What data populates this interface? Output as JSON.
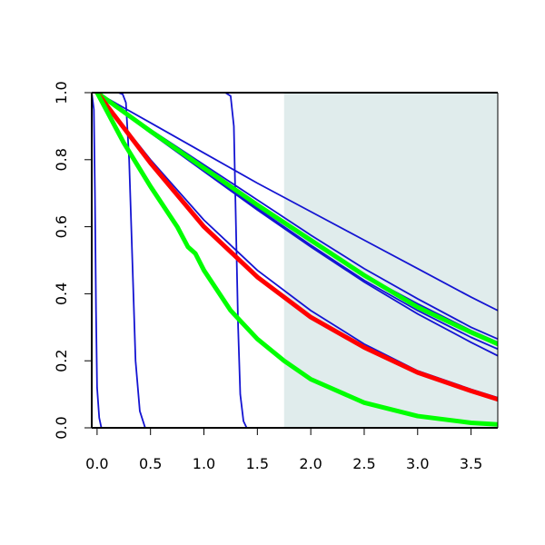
{
  "chart_data": {
    "type": "line",
    "title": "",
    "xlabel": "",
    "ylabel": "",
    "xlim": [
      -0.05,
      3.75
    ],
    "ylim": [
      0.0,
      1.0
    ],
    "x_ticks": [
      "0.0",
      "0.5",
      "1.0",
      "1.5",
      "2.0",
      "2.5",
      "3.0",
      "3.5"
    ],
    "x_tick_values": [
      0.0,
      0.5,
      1.0,
      1.5,
      2.0,
      2.5,
      3.0,
      3.5
    ],
    "y_ticks": [
      "0.0",
      "0.2",
      "0.4",
      "0.6",
      "0.8",
      "1.0"
    ],
    "y_tick_values": [
      0.0,
      0.2,
      0.4,
      0.6,
      0.8,
      1.0
    ],
    "grid": false,
    "legend": "none",
    "shaded_region": {
      "x_from": 1.75,
      "x_to": 3.75,
      "color": "#e0ecec"
    },
    "series": [
      {
        "color": "#1414d2",
        "width": "thin",
        "x": [
          -0.05,
          -0.03,
          -0.02,
          -0.01,
          0.0,
          0.02,
          0.04,
          3.75
        ],
        "y": [
          1.0,
          0.95,
          0.7,
          0.35,
          0.12,
          0.03,
          0.0,
          0.0
        ]
      },
      {
        "color": "#1414d2",
        "width": "thin",
        "x": [
          0.2,
          0.24,
          0.27,
          0.3,
          0.33,
          0.36,
          0.4,
          0.45,
          3.75
        ],
        "y": [
          1.0,
          0.995,
          0.97,
          0.8,
          0.5,
          0.2,
          0.05,
          0.0,
          0.0
        ]
      },
      {
        "color": "#1414d2",
        "width": "thin",
        "x": [
          0.0,
          1.2,
          1.25,
          1.28,
          1.3,
          1.32,
          1.34,
          1.37,
          1.4,
          3.75
        ],
        "y": [
          1.0,
          1.0,
          0.99,
          0.9,
          0.6,
          0.3,
          0.1,
          0.02,
          0.0,
          0.0
        ]
      },
      {
        "color": "#1414d2",
        "width": "thin",
        "x": [
          0.0,
          0.5,
          1.0,
          1.5,
          2.0,
          2.5,
          3.0,
          3.5,
          3.75
        ],
        "y": [
          1.0,
          0.8,
          0.62,
          0.47,
          0.35,
          0.25,
          0.17,
          0.115,
          0.09
        ]
      },
      {
        "color": "#1414d2",
        "width": "thin",
        "x": [
          0.0,
          0.5,
          1.0,
          1.5,
          2.0,
          2.5,
          3.0,
          3.5,
          3.75
        ],
        "y": [
          1.0,
          0.88,
          0.77,
          0.66,
          0.555,
          0.455,
          0.37,
          0.29,
          0.255
        ]
      },
      {
        "color": "#1414d2",
        "width": "thin",
        "x": [
          0.0,
          0.5,
          1.0,
          1.5,
          2.0,
          2.5,
          3.0,
          3.5,
          3.75
        ],
        "y": [
          1.0,
          0.88,
          0.77,
          0.655,
          0.545,
          0.44,
          0.35,
          0.27,
          0.235
        ]
      },
      {
        "color": "#1414d2",
        "width": "thin",
        "x": [
          0.0,
          0.5,
          1.0,
          1.5,
          2.0,
          2.5,
          3.0,
          3.5,
          3.75
        ],
        "y": [
          1.0,
          0.88,
          0.765,
          0.65,
          0.54,
          0.435,
          0.34,
          0.255,
          0.215
        ]
      },
      {
        "color": "#1414d2",
        "width": "thin",
        "x": [
          0.0,
          0.5,
          1.0,
          1.5,
          2.0,
          2.5,
          3.0,
          3.5,
          3.75
        ],
        "y": [
          1.0,
          0.91,
          0.82,
          0.73,
          0.645,
          0.56,
          0.475,
          0.39,
          0.35
        ]
      },
      {
        "color": "#1414d2",
        "width": "thin",
        "x": [
          0.0,
          0.5,
          1.0,
          1.5,
          2.0,
          2.5,
          3.0,
          3.5,
          3.75
        ],
        "y": [
          1.0,
          0.89,
          0.785,
          0.68,
          0.575,
          0.475,
          0.385,
          0.3,
          0.265
        ]
      },
      {
        "color": "#00ff00",
        "width": "thick",
        "x": [
          0.0,
          0.5,
          1.0,
          1.5,
          2.0,
          2.5,
          3.0,
          3.5,
          3.75
        ],
        "y": [
          1.0,
          0.885,
          0.775,
          0.665,
          0.56,
          0.455,
          0.36,
          0.285,
          0.25
        ]
      },
      {
        "color": "#ff0000",
        "width": "thick",
        "x": [
          0.0,
          0.5,
          1.0,
          1.5,
          2.0,
          2.5,
          3.0,
          3.5,
          3.75
        ],
        "y": [
          1.0,
          0.79,
          0.6,
          0.45,
          0.33,
          0.24,
          0.165,
          0.11,
          0.085
        ]
      },
      {
        "color": "#00ff00",
        "width": "thick",
        "x": [
          0.0,
          0.25,
          0.5,
          0.75,
          0.85,
          0.92,
          1.0,
          1.25,
          1.5,
          1.75,
          2.0,
          2.5,
          3.0,
          3.5,
          3.75
        ],
        "y": [
          1.0,
          0.85,
          0.72,
          0.6,
          0.54,
          0.52,
          0.47,
          0.35,
          0.265,
          0.2,
          0.145,
          0.075,
          0.035,
          0.015,
          0.01
        ]
      }
    ]
  }
}
